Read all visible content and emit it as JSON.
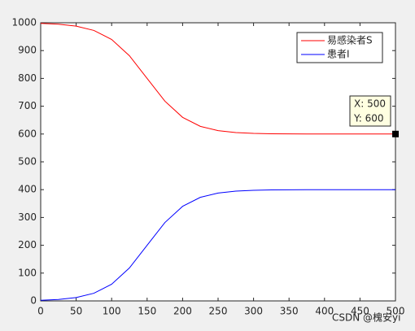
{
  "chart_data": {
    "type": "line",
    "x": [
      0,
      25,
      50,
      75,
      100,
      125,
      150,
      175,
      200,
      225,
      250,
      275,
      300,
      325,
      350,
      375,
      400,
      425,
      450,
      475,
      500
    ],
    "series": [
      {
        "name": "易感染者S",
        "color": "#ff0000",
        "values": [
          997.8,
          994.8,
          987.9,
          972.4,
          940,
          881.7,
          800,
          718.3,
          660,
          627.6,
          612.1,
          605.2,
          602.2,
          600.9,
          600.4,
          600.2,
          600.1,
          600,
          600,
          600,
          600
        ]
      },
      {
        "name": "患者I",
        "color": "#0000ff",
        "values": [
          2.2,
          5.2,
          12.1,
          27.6,
          60,
          118.3,
          200,
          281.7,
          340,
          372.4,
          387.9,
          394.8,
          397.8,
          399.1,
          399.6,
          399.8,
          399.9,
          400,
          400,
          400,
          400
        ]
      }
    ],
    "xlim": [
      0,
      500
    ],
    "xticks": [
      0,
      50,
      100,
      150,
      200,
      250,
      300,
      350,
      400,
      450,
      500
    ],
    "ylim": [
      0,
      1000
    ],
    "yticks": [
      0,
      100,
      200,
      300,
      400,
      500,
      600,
      700,
      800,
      900,
      1000
    ],
    "legend": "upper-right",
    "datatip": {
      "x": 500,
      "y": 600,
      "lines": [
        "X: 500",
        "Y: 600"
      ]
    },
    "watermark": "CSDN @槐安yi"
  }
}
